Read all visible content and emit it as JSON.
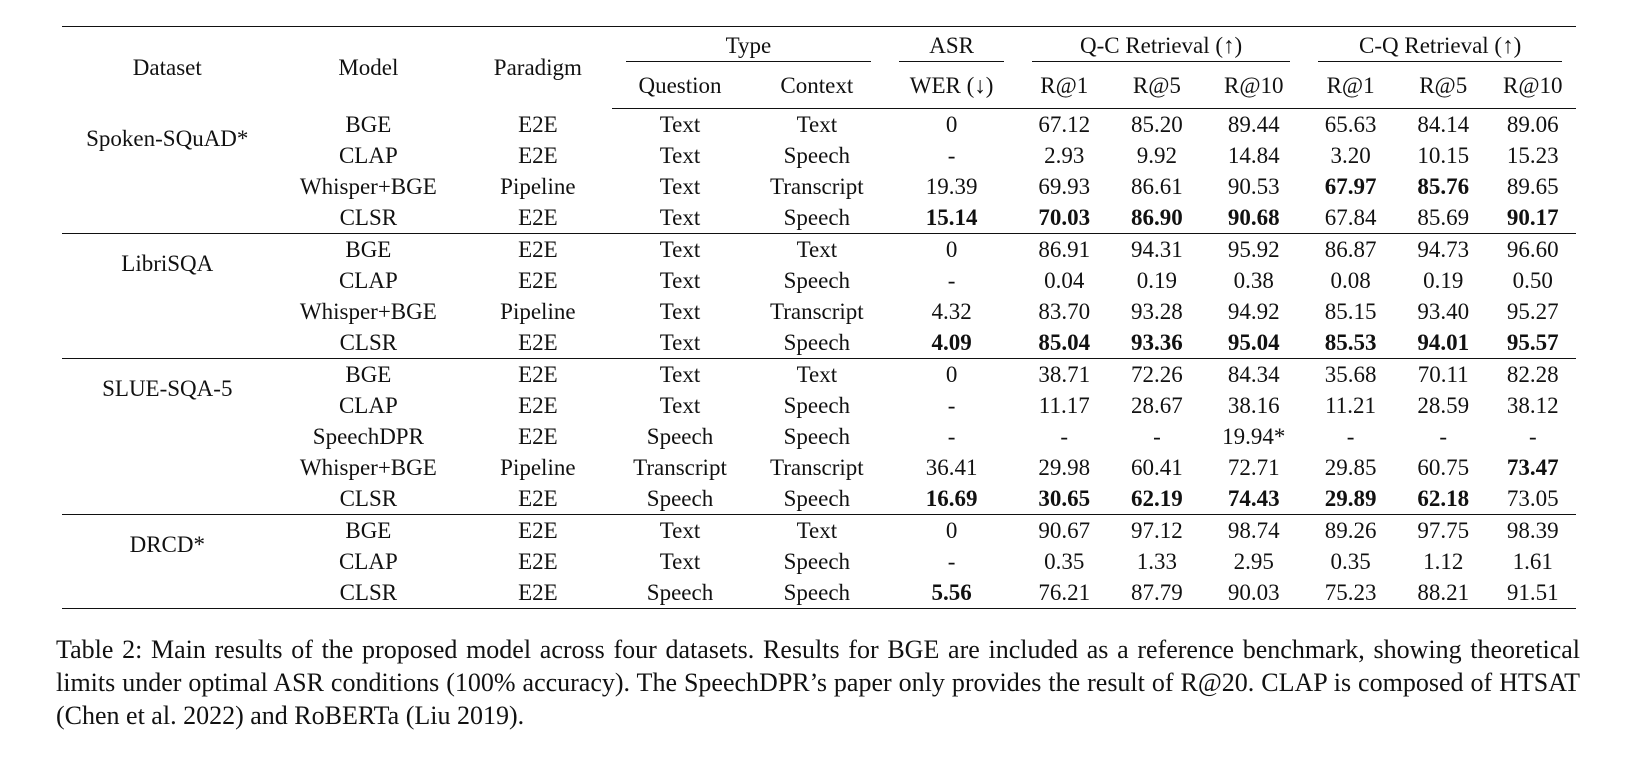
{
  "table": {
    "header": {
      "dataset": "Dataset",
      "model": "Model",
      "paradigm": "Paradigm",
      "type": "Type",
      "asr": "ASR",
      "qc": "Q-C Retrieval (↑)",
      "cq": "C-Q Retrieval (↑)",
      "question": "Question",
      "context": "Context",
      "wer": "WER (↓)",
      "r1": "R@1",
      "r5": "R@5",
      "r10": "R@10"
    },
    "groups": [
      {
        "dataset": "Spoken-SQuAD*",
        "rows": [
          {
            "model": "BGE",
            "paradigm": "E2E",
            "question": "Text",
            "context": "Text",
            "wer": "0",
            "qc_r1": "67.12",
            "qc_r5": "85.20",
            "qc_r10": "89.44",
            "cq_r1": "65.63",
            "cq_r5": "84.14",
            "cq_r10": "89.06",
            "bold": []
          },
          {
            "model": "CLAP",
            "paradigm": "E2E",
            "question": "Text",
            "context": "Speech",
            "wer": "-",
            "qc_r1": "2.93",
            "qc_r5": "9.92",
            "qc_r10": "14.84",
            "cq_r1": "3.20",
            "cq_r5": "10.15",
            "cq_r10": "15.23",
            "bold": []
          },
          {
            "model": "Whisper+BGE",
            "paradigm": "Pipeline",
            "question": "Text",
            "context": "Transcript",
            "wer": "19.39",
            "qc_r1": "69.93",
            "qc_r5": "86.61",
            "qc_r10": "90.53",
            "cq_r1": "67.97",
            "cq_r5": "85.76",
            "cq_r10": "89.65",
            "bold": [
              "cq_r1",
              "cq_r5"
            ]
          },
          {
            "model": "CLSR",
            "paradigm": "E2E",
            "question": "Text",
            "context": "Speech",
            "wer": "15.14",
            "qc_r1": "70.03",
            "qc_r5": "86.90",
            "qc_r10": "90.68",
            "cq_r1": "67.84",
            "cq_r5": "85.69",
            "cq_r10": "90.17",
            "bold": [
              "wer",
              "qc_r1",
              "qc_r5",
              "qc_r10",
              "cq_r10"
            ]
          }
        ]
      },
      {
        "dataset": "LibriSQA",
        "rows": [
          {
            "model": "BGE",
            "paradigm": "E2E",
            "question": "Text",
            "context": "Text",
            "wer": "0",
            "qc_r1": "86.91",
            "qc_r5": "94.31",
            "qc_r10": "95.92",
            "cq_r1": "86.87",
            "cq_r5": "94.73",
            "cq_r10": "96.60",
            "bold": []
          },
          {
            "model": "CLAP",
            "paradigm": "E2E",
            "question": "Text",
            "context": "Speech",
            "wer": "-",
            "qc_r1": "0.04",
            "qc_r5": "0.19",
            "qc_r10": "0.38",
            "cq_r1": "0.08",
            "cq_r5": "0.19",
            "cq_r10": "0.50",
            "bold": []
          },
          {
            "model": "Whisper+BGE",
            "paradigm": "Pipeline",
            "question": "Text",
            "context": "Transcript",
            "wer": "4.32",
            "qc_r1": "83.70",
            "qc_r5": "93.28",
            "qc_r10": "94.92",
            "cq_r1": "85.15",
            "cq_r5": "93.40",
            "cq_r10": "95.27",
            "bold": []
          },
          {
            "model": "CLSR",
            "paradigm": "E2E",
            "question": "Text",
            "context": "Speech",
            "wer": "4.09",
            "qc_r1": "85.04",
            "qc_r5": "93.36",
            "qc_r10": "95.04",
            "cq_r1": "85.53",
            "cq_r5": "94.01",
            "cq_r10": "95.57",
            "bold": [
              "wer",
              "qc_r1",
              "qc_r5",
              "qc_r10",
              "cq_r1",
              "cq_r5",
              "cq_r10"
            ]
          }
        ]
      },
      {
        "dataset": "SLUE-SQA-5",
        "rows": [
          {
            "model": "BGE",
            "paradigm": "E2E",
            "question": "Text",
            "context": "Text",
            "wer": "0",
            "qc_r1": "38.71",
            "qc_r5": "72.26",
            "qc_r10": "84.34",
            "cq_r1": "35.68",
            "cq_r5": "70.11",
            "cq_r10": "82.28",
            "bold": []
          },
          {
            "model": "CLAP",
            "paradigm": "E2E",
            "question": "Text",
            "context": "Speech",
            "wer": "-",
            "qc_r1": "11.17",
            "qc_r5": "28.67",
            "qc_r10": "38.16",
            "cq_r1": "11.21",
            "cq_r5": "28.59",
            "cq_r10": "38.12",
            "bold": []
          },
          {
            "model": "SpeechDPR",
            "paradigm": "E2E",
            "question": "Speech",
            "context": "Speech",
            "wer": "-",
            "qc_r1": "-",
            "qc_r5": "-",
            "qc_r10": "19.94*",
            "cq_r1": "-",
            "cq_r5": "-",
            "cq_r10": "-",
            "bold": []
          },
          {
            "model": "Whisper+BGE",
            "paradigm": "Pipeline",
            "question": "Transcript",
            "context": "Transcript",
            "wer": "36.41",
            "qc_r1": "29.98",
            "qc_r5": "60.41",
            "qc_r10": "72.71",
            "cq_r1": "29.85",
            "cq_r5": "60.75",
            "cq_r10": "73.47",
            "bold": [
              "cq_r10"
            ]
          },
          {
            "model": "CLSR",
            "paradigm": "E2E",
            "question": "Speech",
            "context": "Speech",
            "wer": "16.69",
            "qc_r1": "30.65",
            "qc_r5": "62.19",
            "qc_r10": "74.43",
            "cq_r1": "29.89",
            "cq_r5": "62.18",
            "cq_r10": "73.05",
            "bold": [
              "wer",
              "qc_r1",
              "qc_r5",
              "qc_r10",
              "cq_r1",
              "cq_r5"
            ]
          }
        ]
      },
      {
        "dataset": "DRCD*",
        "rows": [
          {
            "model": "BGE",
            "paradigm": "E2E",
            "question": "Text",
            "context": "Text",
            "wer": "0",
            "qc_r1": "90.67",
            "qc_r5": "97.12",
            "qc_r10": "98.74",
            "cq_r1": "89.26",
            "cq_r5": "97.75",
            "cq_r10": "98.39",
            "bold": []
          },
          {
            "model": "CLAP",
            "paradigm": "E2E",
            "question": "Text",
            "context": "Speech",
            "wer": "-",
            "qc_r1": "0.35",
            "qc_r5": "1.33",
            "qc_r10": "2.95",
            "cq_r1": "0.35",
            "cq_r5": "1.12",
            "cq_r10": "1.61",
            "bold": []
          },
          {
            "model": "CLSR",
            "paradigm": "E2E",
            "question": "Speech",
            "context": "Speech",
            "wer": "5.56",
            "qc_r1": "76.21",
            "qc_r5": "87.79",
            "qc_r10": "90.03",
            "cq_r1": "75.23",
            "cq_r5": "88.21",
            "cq_r10": "91.51",
            "bold": [
              "wer"
            ]
          }
        ]
      }
    ]
  },
  "caption": "Table 2: Main results of the proposed model across four datasets. Results for BGE are included as a reference benchmark, showing theoretical limits under optimal ASR conditions (100% accuracy). The SpeechDPR’s paper only provides the result of R@20. CLAP is composed of HTSAT (Chen et al. 2022) and RoBERTa (Liu 2019)."
}
